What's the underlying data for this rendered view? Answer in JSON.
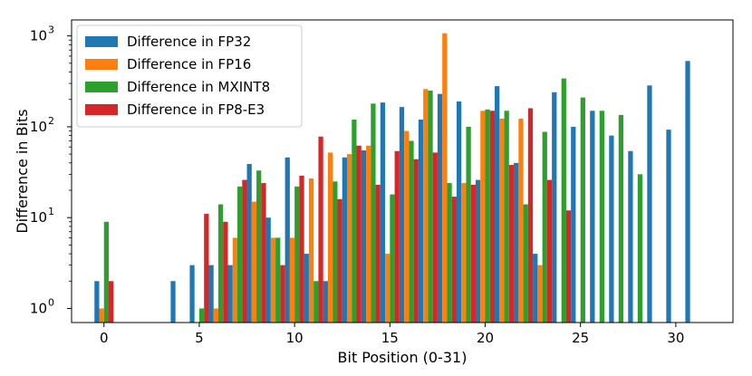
{
  "chart_data": {
    "type": "bar",
    "title": "",
    "xlabel": "Bit Position (0-31)",
    "ylabel": "Difference in Bits",
    "y_scale": "log",
    "ylim": [
      0.7,
      1500
    ],
    "xlim": [
      -1.7,
      33
    ],
    "x_ticks": [
      0,
      5,
      10,
      15,
      20,
      25,
      30
    ],
    "y_ticks": [
      {
        "value": 1,
        "base": "10",
        "exp": "0"
      },
      {
        "value": 10,
        "base": "10",
        "exp": "1"
      },
      {
        "value": 100,
        "base": "10",
        "exp": "2"
      },
      {
        "value": 1000,
        "base": "10",
        "exp": "3"
      }
    ],
    "grid": false,
    "legend_position": "top-left",
    "series": [
      {
        "name": "Difference in FP32",
        "color": "#1f77b4",
        "points": [
          [
            0,
            2
          ],
          [
            4,
            2
          ],
          [
            5,
            3
          ],
          [
            6,
            3
          ],
          [
            7,
            3
          ],
          [
            8,
            39
          ],
          [
            9,
            10
          ],
          [
            10,
            46
          ],
          [
            11,
            4
          ],
          [
            12,
            2
          ],
          [
            13,
            46
          ],
          [
            14,
            55
          ],
          [
            15,
            185
          ],
          [
            16,
            165
          ],
          [
            17,
            120
          ],
          [
            18,
            230
          ],
          [
            19,
            190
          ],
          [
            20,
            26
          ],
          [
            21,
            280
          ],
          [
            22,
            40
          ],
          [
            23,
            4
          ],
          [
            24,
            240
          ],
          [
            25,
            100
          ],
          [
            26,
            150
          ],
          [
            27,
            80
          ],
          [
            28,
            54
          ],
          [
            29,
            285
          ],
          [
            30,
            93
          ],
          [
            31,
            530
          ]
        ]
      },
      {
        "name": "Difference in FP16",
        "color": "#ff7f0e",
        "points": [
          [
            0,
            1
          ],
          [
            6,
            1
          ],
          [
            7,
            6
          ],
          [
            8,
            15
          ],
          [
            9,
            6
          ],
          [
            10,
            6
          ],
          [
            11,
            27
          ],
          [
            12,
            52
          ],
          [
            13,
            50
          ],
          [
            14,
            62
          ],
          [
            15,
            4
          ],
          [
            16,
            90
          ],
          [
            17,
            260
          ],
          [
            18,
            1070
          ],
          [
            19,
            24
          ],
          [
            20,
            150
          ],
          [
            21,
            123
          ],
          [
            22,
            123
          ],
          [
            23,
            3
          ]
        ]
      },
      {
        "name": "Difference in MXINT8",
        "color": "#2ca02c",
        "points": [
          [
            0,
            9
          ],
          [
            5,
            1
          ],
          [
            6,
            14
          ],
          [
            7,
            22
          ],
          [
            8,
            33
          ],
          [
            9,
            6
          ],
          [
            10,
            22
          ],
          [
            11,
            2
          ],
          [
            12,
            25
          ],
          [
            13,
            120
          ],
          [
            14,
            180
          ],
          [
            15,
            18
          ],
          [
            16,
            70
          ],
          [
            17,
            250
          ],
          [
            18,
            24
          ],
          [
            19,
            100
          ],
          [
            20,
            155
          ],
          [
            21,
            150
          ],
          [
            22,
            14
          ],
          [
            23,
            88
          ],
          [
            24,
            340
          ],
          [
            25,
            210
          ],
          [
            26,
            150
          ],
          [
            27,
            135
          ],
          [
            28,
            30
          ]
        ]
      },
      {
        "name": "Difference in FP8-E3",
        "color": "#d62728",
        "points": [
          [
            0,
            2
          ],
          [
            5,
            11
          ],
          [
            6,
            9
          ],
          [
            7,
            26
          ],
          [
            8,
            24
          ],
          [
            9,
            3
          ],
          [
            10,
            29
          ],
          [
            11,
            78
          ],
          [
            12,
            16
          ],
          [
            13,
            62
          ],
          [
            14,
            23
          ],
          [
            15,
            54
          ],
          [
            16,
            44
          ],
          [
            17,
            52
          ],
          [
            18,
            17
          ],
          [
            19,
            23
          ],
          [
            20,
            150
          ],
          [
            21,
            38
          ],
          [
            22,
            160
          ],
          [
            23,
            26
          ],
          [
            24,
            12
          ]
        ]
      }
    ]
  }
}
